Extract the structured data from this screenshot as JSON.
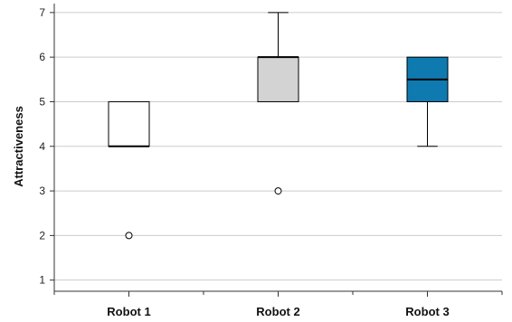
{
  "chart_data": {
    "type": "boxplot",
    "title": "",
    "xlabel": "",
    "ylabel": "Attractiveness",
    "ylim": [
      0.75,
      7.2
    ],
    "yticks": [
      1,
      2,
      3,
      4,
      5,
      6,
      7
    ],
    "grid": "horizontal",
    "categories": [
      "Robot 1",
      "Robot 2",
      "Robot 3"
    ],
    "boxes": [
      {
        "category": "Robot 1",
        "whisker_low": 4,
        "q1": 4,
        "median": 4,
        "q3": 5,
        "whisker_high": 5,
        "outliers": [
          2
        ],
        "color": "#ffffff"
      },
      {
        "category": "Robot 2",
        "whisker_low": 5,
        "q1": 5,
        "median": 6,
        "q3": 6,
        "whisker_high": 7,
        "outliers": [
          3
        ],
        "color": "#d3d3d3"
      },
      {
        "category": "Robot 3",
        "whisker_low": 4,
        "q1": 5,
        "median": 5.5,
        "q3": 6,
        "whisker_high": 6,
        "outliers": [],
        "color": "#0e7ab0"
      }
    ]
  }
}
